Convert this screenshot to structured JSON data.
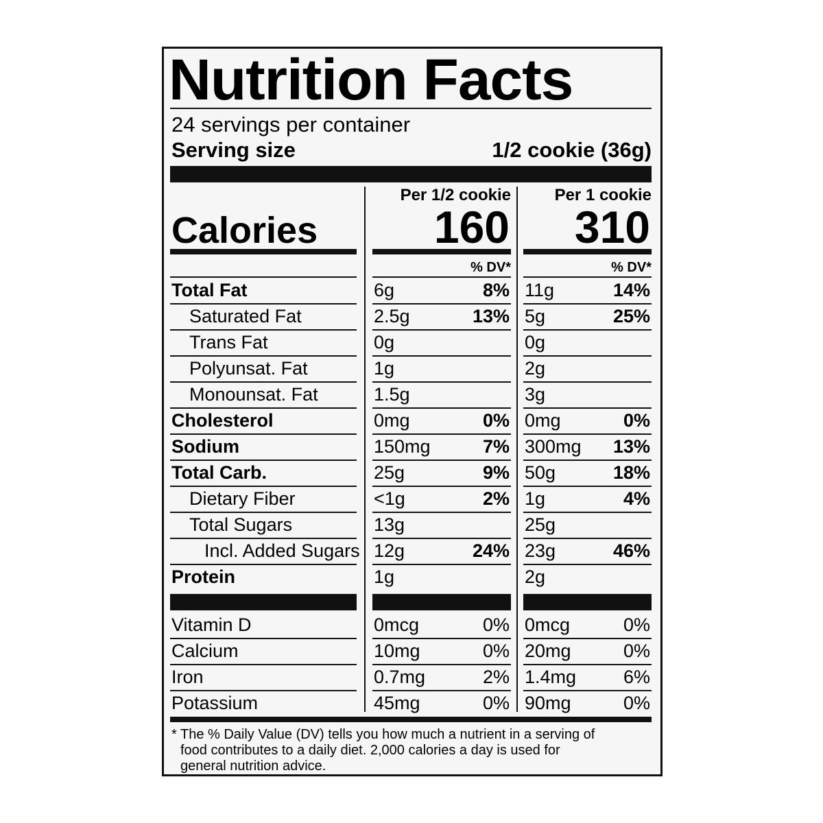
{
  "title": "Nutrition Facts",
  "servings": "24 servings per container",
  "serving_size": {
    "label": "Serving size",
    "value": "1/2 cookie (36g)"
  },
  "calories": {
    "label": "Calories",
    "columns": [
      {
        "header": "Per 1/2 cookie",
        "value": 160
      },
      {
        "header": "Per 1 cookie",
        "value": 310
      }
    ]
  },
  "dv_header": [
    "% DV*",
    "% DV*"
  ],
  "nutrients": [
    {
      "name": "Total Fat",
      "bold": true,
      "indent": 0,
      "values": [
        [
          "6g",
          "8%"
        ],
        [
          "11g",
          "14%"
        ]
      ]
    },
    {
      "name": "Saturated Fat",
      "bold": false,
      "indent": 1,
      "values": [
        [
          "2.5g",
          "13%"
        ],
        [
          "5g",
          "25%"
        ]
      ]
    },
    {
      "name": "Trans Fat",
      "bold": false,
      "indent": 1,
      "values": [
        [
          "0g"
        ],
        [
          "0g"
        ]
      ]
    },
    {
      "name": "Polyunsat. Fat",
      "bold": false,
      "indent": 1,
      "values": [
        [
          "1g"
        ],
        [
          "2g"
        ]
      ]
    },
    {
      "name": "Monounsat. Fat",
      "bold": false,
      "indent": 1,
      "values": [
        [
          "1.5g"
        ],
        [
          "3g"
        ]
      ]
    },
    {
      "name": "Cholesterol",
      "bold": true,
      "indent": 0,
      "values": [
        [
          "0mg",
          "0%"
        ],
        [
          "0mg",
          "0%"
        ]
      ]
    },
    {
      "name": "Sodium",
      "bold": true,
      "indent": 0,
      "values": [
        [
          "150mg",
          "7%"
        ],
        [
          "300mg",
          "13%"
        ]
      ]
    },
    {
      "name": "Total Carb.",
      "bold": true,
      "indent": 0,
      "values": [
        [
          "25g",
          "9%"
        ],
        [
          "50g",
          "18%"
        ]
      ]
    },
    {
      "name": "Dietary Fiber",
      "bold": false,
      "indent": 1,
      "values": [
        [
          "<1g",
          "2%"
        ],
        [
          "1g",
          "4%"
        ]
      ]
    },
    {
      "name": "Total Sugars",
      "bold": false,
      "indent": 1,
      "values": [
        [
          "13g"
        ],
        [
          "25g"
        ]
      ]
    },
    {
      "name": "Incl. Added Sugars",
      "bold": false,
      "indent": 2,
      "values": [
        [
          "12g",
          "24%"
        ],
        [
          "23g",
          "46%"
        ]
      ]
    },
    {
      "name": "Protein",
      "bold": true,
      "indent": 0,
      "values": [
        [
          "1g"
        ],
        [
          "2g"
        ]
      ]
    }
  ],
  "vitamins": [
    {
      "name": "Vitamin D",
      "values": [
        [
          "0mcg",
          "0%"
        ],
        [
          "0mcg",
          "0%"
        ]
      ]
    },
    {
      "name": "Calcium",
      "values": [
        [
          "10mg",
          "0%"
        ],
        [
          "20mg",
          "0%"
        ]
      ]
    },
    {
      "name": "Iron",
      "values": [
        [
          "0.7mg",
          "2%"
        ],
        [
          "1.4mg",
          "6%"
        ]
      ]
    },
    {
      "name": "Potassium",
      "values": [
        [
          "45mg",
          "0%"
        ],
        [
          "90mg",
          "0%"
        ]
      ]
    }
  ],
  "footnote": [
    "* The % Daily Value (DV) tells you how much a nutrient in a serving of",
    "food contributes to a daily diet. 2,000 calories a day is used for",
    "general nutrition advice."
  ]
}
